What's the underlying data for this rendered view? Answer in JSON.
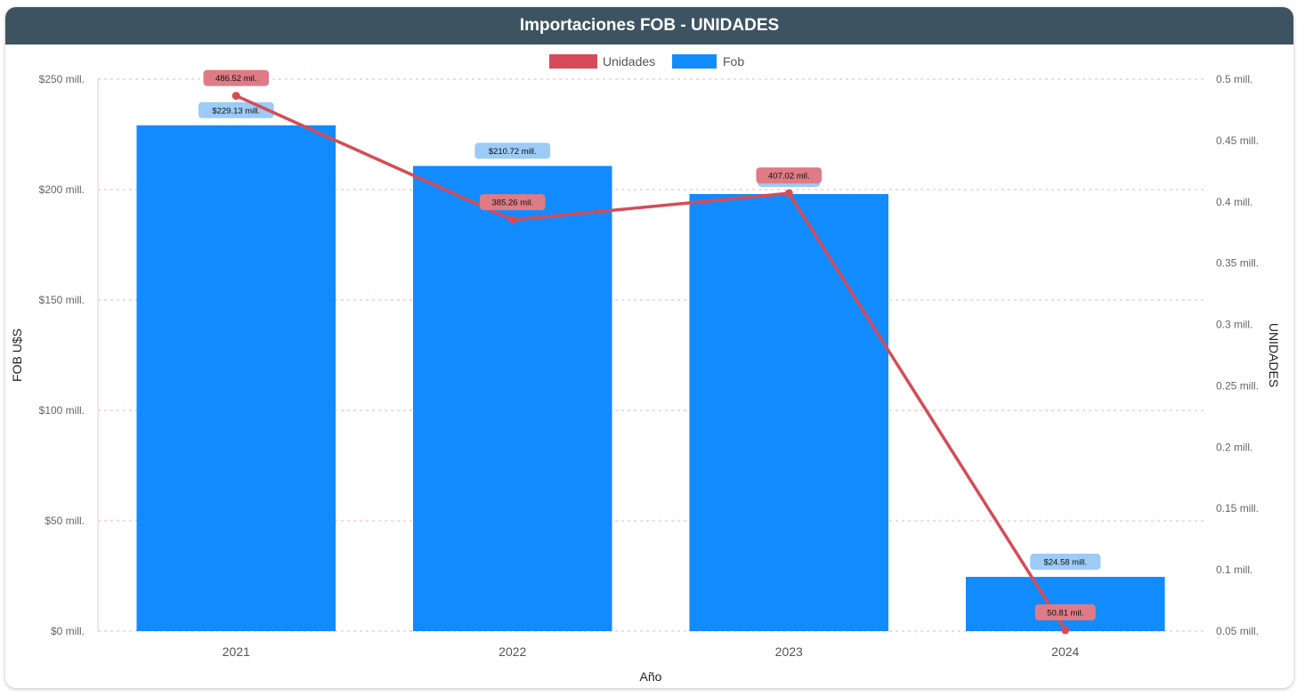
{
  "header": {
    "title": "Importaciones FOB - UNIDADES"
  },
  "colors": {
    "header_bg": "#3d5361",
    "bar": "#128bff",
    "line": "#d64b57",
    "bar_label_bg": "#9ccbf6",
    "line_label_bg": "#de7b85"
  },
  "chart_data": {
    "type": "bar",
    "title": "Importaciones FOB - UNIDADES",
    "categories": [
      "2021",
      "2022",
      "2023",
      "2024"
    ],
    "xlabel": "Año",
    "ylabel": "FOB U$S",
    "y2label": "UNIDADES",
    "ylim": [
      0,
      250000000
    ],
    "y2lim": [
      50000,
      500000
    ],
    "yticks": [
      "$0 mill.",
      "$50 mill.",
      "$100 mill.",
      "$150 mill.",
      "$200 mill.",
      "$250 mill."
    ],
    "y2ticks": [
      "0.05 mill.",
      "0.1 mill.",
      "0.15 mill.",
      "0.2 mill.",
      "0.25 mill.",
      "0.3 mill.",
      "0.35 mill.",
      "0.4 mill.",
      "0.45 mill.",
      "0.5 mill."
    ],
    "legend_position": "top-center",
    "grid": true,
    "series": [
      {
        "name": "Fob",
        "kind": "bar",
        "axis": "left",
        "values": [
          229130000,
          210720000,
          198000000,
          24580000
        ],
        "labels": [
          "$229.13 mill.",
          "$210.72 mill.",
          "",
          "$24.58 mill."
        ]
      },
      {
        "name": "Unidades",
        "kind": "line",
        "axis": "right",
        "values": [
          486520,
          385260,
          407020,
          50810
        ],
        "labels": [
          "486.52 mil.",
          "385.26 mil.",
          "407.02 mil.",
          "50.81 mil."
        ]
      }
    ]
  }
}
